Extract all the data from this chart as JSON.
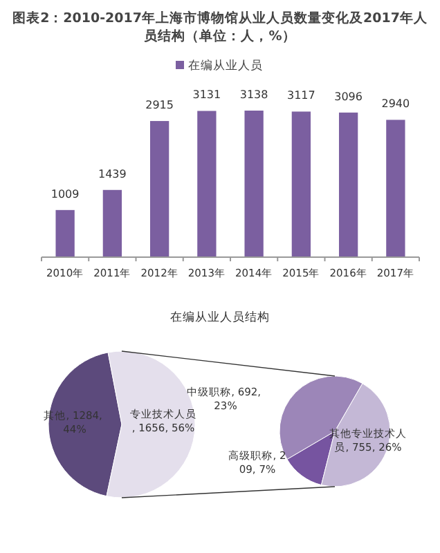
{
  "chart_data": [
    {
      "type": "bar",
      "title": "图表2：2010-2017年上海市博物馆从业人员数量变化及2017年人员结构（单位：人，%）",
      "categories": [
        "2010年",
        "2011年",
        "2012年",
        "2013年",
        "2014年",
        "2015年",
        "2016年",
        "2017年"
      ],
      "series": [
        {
          "name": "在编从业人员",
          "color": "#7b5fa0",
          "values": [
            1009,
            1439,
            2915,
            3131,
            3138,
            3117,
            3096,
            2940
          ]
        }
      ],
      "data_labels": true,
      "legend": "top"
    },
    {
      "type": "pie",
      "title": "在编从业人员结构",
      "categories": [
        "其他",
        "专业技术人员"
      ],
      "values": [
        1284,
        1656
      ],
      "colors": [
        "#5c4a7c",
        "#e4dfec"
      ],
      "value_labels": [
        ", 1284, 44%",
        ", 1656, 56%"
      ]
    },
    {
      "type": "pie",
      "categories": [
        "中级职称",
        "高级职称",
        "其他专业技术人员"
      ],
      "values": [
        692,
        209,
        755
      ],
      "colors": [
        "#9c86b8",
        "#7654a0",
        "#c4b8d6"
      ],
      "value_labels": [
        ", 692, 23%",
        ", 209, 7%",
        ", 755, 26%"
      ]
    }
  ]
}
